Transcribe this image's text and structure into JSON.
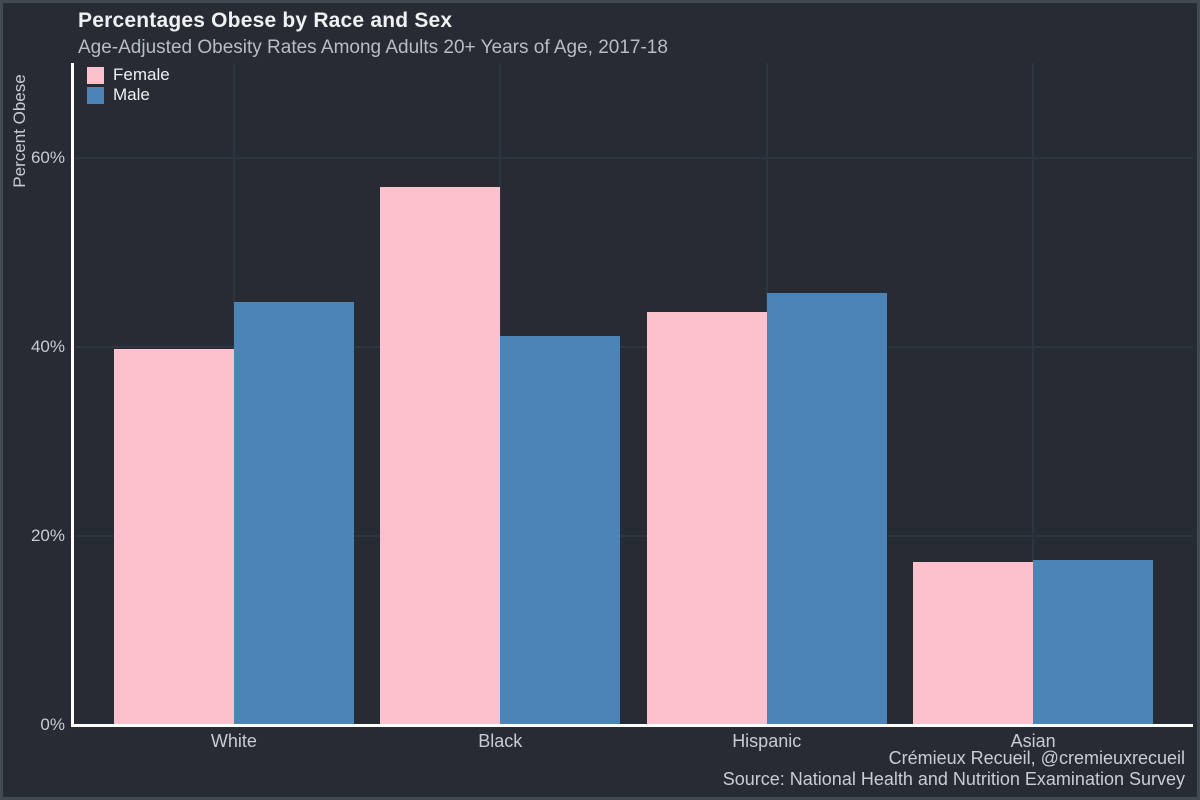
{
  "chart": {
    "title": "Percentages Obese by Race and Sex",
    "subtitle": "Age-Adjusted Obesity Rates Among Adults 20+ Years of Age, 2017-18",
    "y_axis_title": "Percent Obese",
    "caption_line1": "Crémieux Recueil, @cremieuxrecueil",
    "caption_line2": "Source: National Health and Nutrition Examination Survey",
    "legend": {
      "female_label": "Female",
      "male_label": "Male"
    }
  },
  "chart_data": {
    "type": "bar",
    "title": "Percentages Obese by Race and Sex",
    "subtitle": "Age-Adjusted Obesity Rates Among Adults 20+ Years of Age, 2017-18",
    "xlabel": "",
    "ylabel": "Percent Obese",
    "categories": [
      "White",
      "Black",
      "Hispanic",
      "Asian"
    ],
    "series": [
      {
        "name": "Female",
        "color": "#fcc1cd",
        "values": [
          39.8,
          56.9,
          43.7,
          17.2
        ]
      },
      {
        "name": "Male",
        "color": "#4b84b6",
        "values": [
          44.7,
          41.1,
          45.7,
          17.5
        ]
      }
    ],
    "yticks": [
      0,
      20,
      40,
      60
    ],
    "ytick_labels": [
      "0%",
      "20%",
      "40%",
      "60%"
    ],
    "ylim": [
      0,
      70
    ],
    "grid": true,
    "legend_position": "top-left-inside",
    "caption": "Crémieux Recueil, @cremieuxrecueil\nSource: National Health and Nutrition Examination Survey"
  },
  "colors": {
    "background": "#262b34",
    "frame_border": "#434a54",
    "gridline": "#2f3540",
    "axis_line": "#ffffff",
    "title_text": "#f0f1f3",
    "subtitle_text": "#b8bcc3",
    "tick_text": "#c8ccd2",
    "caption_text": "#c9cdd3",
    "legend_text": "#eef0f2",
    "female_bar": "#fcc1cd",
    "male_bar": "#4b84b6"
  }
}
